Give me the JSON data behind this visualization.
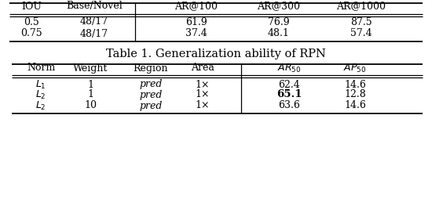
{
  "table1": {
    "headers": [
      "IOU",
      "Base/Novel",
      "AR@100",
      "AR@300",
      "AR@1000"
    ],
    "rows": [
      [
        "0.5",
        "48/17",
        "61.9",
        "76.9",
        "87.5"
      ],
      [
        "0.75",
        "48/17",
        "37.4",
        "48.1",
        "57.4"
      ]
    ]
  },
  "table2": {
    "title": "Table 1. Generalization ability of RPN",
    "headers": [
      "Norm",
      "Weight",
      "Region",
      "Area",
      "AR_{50}",
      "AP_{50}"
    ],
    "rows": [
      [
        "L_1",
        "1",
        "pred",
        "1×",
        "62.4",
        "14.6"
      ],
      [
        "L_2",
        "1",
        "pred",
        "1×",
        "65.1",
        "12.8"
      ],
      [
        "L_2",
        "10",
        "pred",
        "1×",
        "63.6",
        "14.6"
      ]
    ],
    "bold_cells": [
      [
        1,
        4
      ]
    ]
  },
  "background_color": "#ffffff",
  "font_size": 9.0,
  "title_font_size": 10.5
}
